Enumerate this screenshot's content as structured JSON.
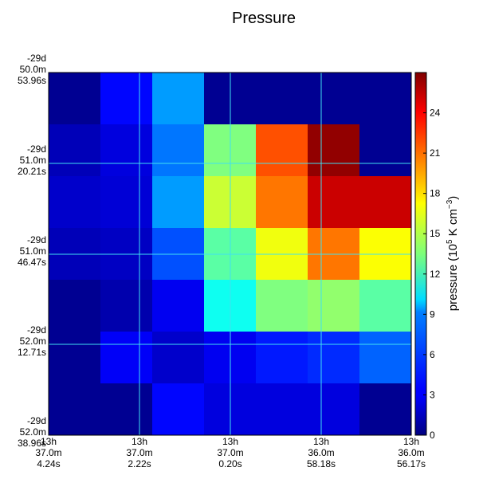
{
  "chart_data": {
    "type": "heatmap",
    "title": "Pressure",
    "colorbar": {
      "label_prefix": "pressure (10",
      "label_exp": "5",
      "label_mid": " K cm",
      "label_exp2": "−3",
      "label_suffix": ")",
      "range": [
        0,
        27
      ],
      "ticks": [
        "0",
        "3",
        "6",
        "9",
        "12",
        "15",
        "18",
        "21",
        "24"
      ],
      "colormap": "jet"
    },
    "grid": true,
    "x_tick_labels": [
      [
        "13h",
        "37.0m",
        "4.24s"
      ],
      [
        "13h",
        "37.0m",
        "2.22s"
      ],
      [
        "13h",
        "37.0m",
        "0.20s"
      ],
      [
        "13h",
        "36.0m",
        "58.18s"
      ],
      [
        "13h",
        "36.0m",
        "56.17s"
      ]
    ],
    "y_tick_labels": [
      [
        "-29d",
        "50.0m",
        "53.96s"
      ],
      [
        "-29d",
        "51.0m",
        "20.21s"
      ],
      [
        "-29d",
        "51.0m",
        "46.47s"
      ],
      [
        "-29d",
        "52.0m",
        "12.71s"
      ],
      [
        "-29d",
        "52.0m",
        "38.96s"
      ]
    ],
    "rows": 7,
    "cols": 7,
    "values": [
      [
        0.5,
        3.5,
        7.5,
        0.5,
        0.5,
        0.5,
        0.5
      ],
      [
        1.5,
        2.5,
        6.5,
        13.5,
        21.5,
        26.5,
        0.5
      ],
      [
        2.0,
        2.3,
        7.5,
        15.5,
        20.5,
        25.0,
        25.0
      ],
      [
        1.5,
        1.8,
        5.5,
        12.5,
        16.5,
        20.5,
        16.8
      ],
      [
        0.5,
        1.2,
        3.0,
        10.5,
        13.5,
        14.0,
        12.5
      ],
      [
        0.5,
        3.2,
        2.0,
        3.0,
        4.0,
        4.5,
        6.0
      ],
      [
        0.5,
        0.5,
        3.5,
        2.5,
        2.5,
        2.5,
        0.5
      ]
    ]
  }
}
